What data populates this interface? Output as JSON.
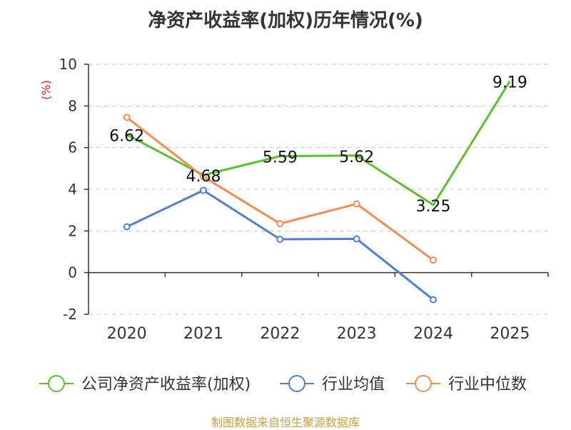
{
  "chart_data": {
    "type": "line",
    "title": "净资产收益率(加权)历年情况(%)",
    "ylabel": "(%)",
    "xlabel": "",
    "categories": [
      "2020",
      "2021",
      "2022",
      "2023",
      "2024",
      "2025"
    ],
    "ylim": [
      -2,
      10
    ],
    "yticks": [
      -2,
      0,
      2,
      4,
      6,
      8,
      10
    ],
    "grid": true,
    "legend_position": "bottom",
    "series": [
      {
        "name": "公司净资产收益率(加权)",
        "color": "#5cc22c",
        "values": [
          6.62,
          4.68,
          5.59,
          5.62,
          3.25,
          9.19
        ],
        "labels": [
          "6.62",
          "4.68",
          "5.59",
          "5.62",
          "3.25",
          "9.19"
        ],
        "show_labels": true
      },
      {
        "name": "行业均值",
        "color": "#4f7fd8",
        "values": [
          2.2,
          3.95,
          1.6,
          1.62,
          -1.3,
          null
        ],
        "show_labels": false
      },
      {
        "name": "行业中位数",
        "color": "#f58d52",
        "values": [
          7.45,
          4.6,
          2.35,
          3.3,
          0.6,
          null
        ],
        "show_labels": false
      }
    ]
  },
  "source": "制图数据来自恒生聚源数据库"
}
